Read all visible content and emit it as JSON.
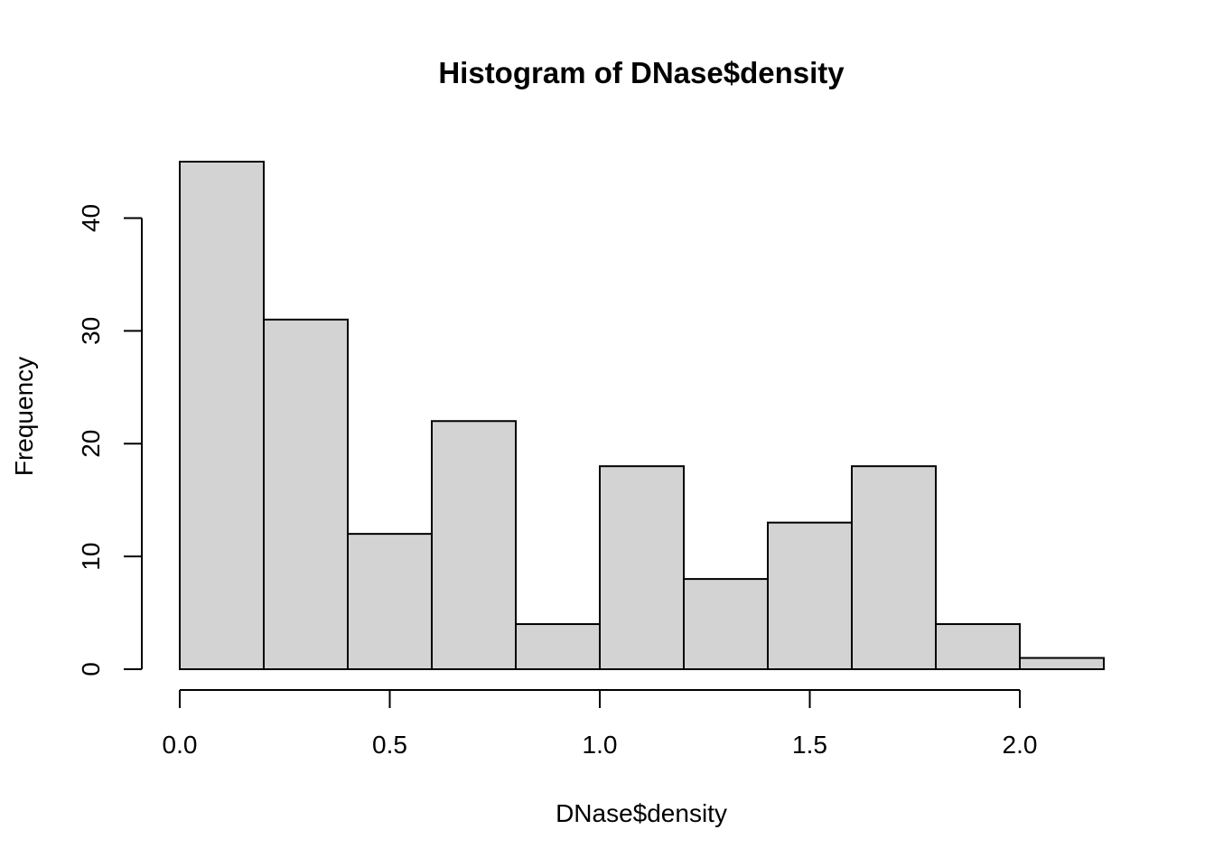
{
  "chart_data": {
    "type": "bar",
    "title": "Histogram of DNase$density",
    "xlabel": "DNase$density",
    "ylabel": "Frequency",
    "bin_edges": [
      0.0,
      0.2,
      0.4,
      0.6,
      0.8,
      1.0,
      1.2,
      1.4,
      1.6,
      1.8,
      2.0,
      2.2
    ],
    "values": [
      45,
      31,
      12,
      22,
      4,
      18,
      8,
      13,
      18,
      4,
      1
    ],
    "xlim": [
      0.0,
      2.2
    ],
    "ylim": [
      0,
      45
    ],
    "x_ticks": [
      0.0,
      0.5,
      1.0,
      1.5,
      2.0
    ],
    "x_tick_labels": [
      "0.0",
      "0.5",
      "1.0",
      "1.5",
      "2.0"
    ],
    "y_ticks": [
      0,
      10,
      20,
      30,
      40
    ],
    "y_tick_labels": [
      "0",
      "10",
      "20",
      "30",
      "40"
    ],
    "grid": false,
    "legend": "none",
    "colors": {
      "bar_fill": "#d3d3d3",
      "bar_stroke": "#000000",
      "axis": "#000000",
      "background": "#ffffff"
    }
  }
}
